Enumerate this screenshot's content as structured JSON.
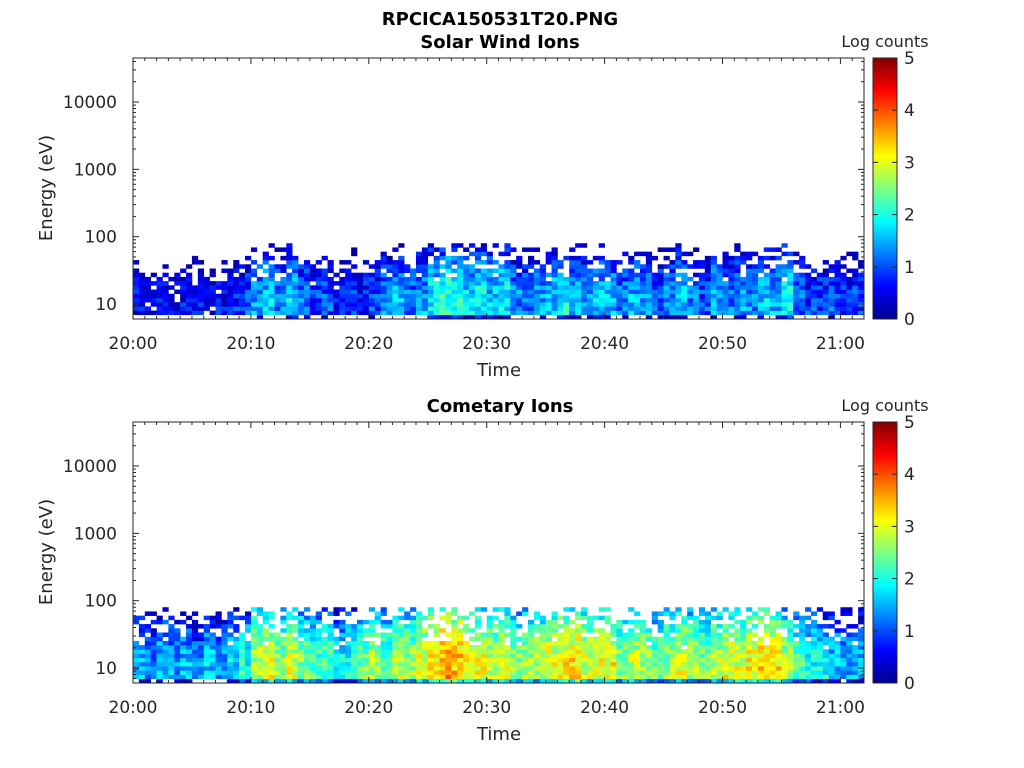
{
  "figure": {
    "title": "RPCICA150531T20.PNG"
  },
  "chart_data": [
    {
      "type": "heatmap",
      "title": "Solar Wind Ions",
      "xlabel": "Time",
      "ylabel": "Energy (eV)",
      "x_tick_labels": [
        "20:00",
        "20:10",
        "20:20",
        "20:30",
        "20:40",
        "20:50",
        "21:00"
      ],
      "xlim": [
        "20:00",
        "21:02"
      ],
      "y_scale": "log",
      "y_tick_labels": [
        "10",
        "100",
        "1000",
        "10000"
      ],
      "ylim": [
        6,
        45000
      ],
      "data_energy_range": [
        6,
        80
      ],
      "colorbar": {
        "label": "Log counts",
        "range": [
          0,
          5
        ],
        "tick_labels": [
          "0",
          "1",
          "2",
          "3",
          "4",
          "5"
        ],
        "colormap": "jet"
      },
      "log_counts_by_minute": [
        0.6,
        0.5,
        0.6,
        0.5,
        0.6,
        0.7,
        0.5,
        0.6,
        0.8,
        1.0,
        1.4,
        1.6,
        1.2,
        1.7,
        1.2,
        0.9,
        1.0,
        0.7,
        0.9,
        0.8,
        1.0,
        1.3,
        1.5,
        1.2,
        1.4,
        1.8,
        2.1,
        2.0,
        1.7,
        1.9,
        1.6,
        1.8,
        1.3,
        1.2,
        1.4,
        1.6,
        1.9,
        1.5,
        1.3,
        1.6,
        1.5,
        1.2,
        1.5,
        1.3,
        1.1,
        1.3,
        1.6,
        1.2,
        1.0,
        1.5,
        1.2,
        1.4,
        1.3,
        1.6,
        1.5,
        1.9,
        1.1,
        0.9,
        0.9,
        1.0,
        0.8,
        0.9
      ]
    },
    {
      "type": "heatmap",
      "title": "Cometary Ions",
      "xlabel": "Time",
      "ylabel": "Energy (eV)",
      "x_tick_labels": [
        "20:00",
        "20:10",
        "20:20",
        "20:30",
        "20:40",
        "20:50",
        "21:00"
      ],
      "xlim": [
        "20:00",
        "21:02"
      ],
      "y_scale": "log",
      "y_tick_labels": [
        "10",
        "100",
        "1000",
        "10000"
      ],
      "ylim": [
        6,
        45000
      ],
      "data_energy_range": [
        6,
        80
      ],
      "colorbar": {
        "label": "Log counts",
        "range": [
          0,
          5
        ],
        "tick_labels": [
          "0",
          "1",
          "2",
          "3",
          "4",
          "5"
        ],
        "colormap": "jet"
      },
      "log_counts_by_minute": [
        1.5,
        1.3,
        1.6,
        1.4,
        1.5,
        1.2,
        1.6,
        1.4,
        1.7,
        2.0,
        2.8,
        3.0,
        2.6,
        2.9,
        2.5,
        2.2,
        2.3,
        1.8,
        2.0,
        2.4,
        2.7,
        2.3,
        2.8,
        2.6,
        3.0,
        3.3,
        3.6,
        3.4,
        3.1,
        3.0,
        2.8,
        2.9,
        2.6,
        2.7,
        2.8,
        3.0,
        3.2,
        3.3,
        2.9,
        3.0,
        3.1,
        2.6,
        2.8,
        2.7,
        2.4,
        2.6,
        2.9,
        2.7,
        2.5,
        2.8,
        3.0,
        2.9,
        3.1,
        3.3,
        3.2,
        2.7,
        2.3,
        2.0,
        1.9,
        1.6,
        1.5,
        1.6
      ]
    }
  ]
}
